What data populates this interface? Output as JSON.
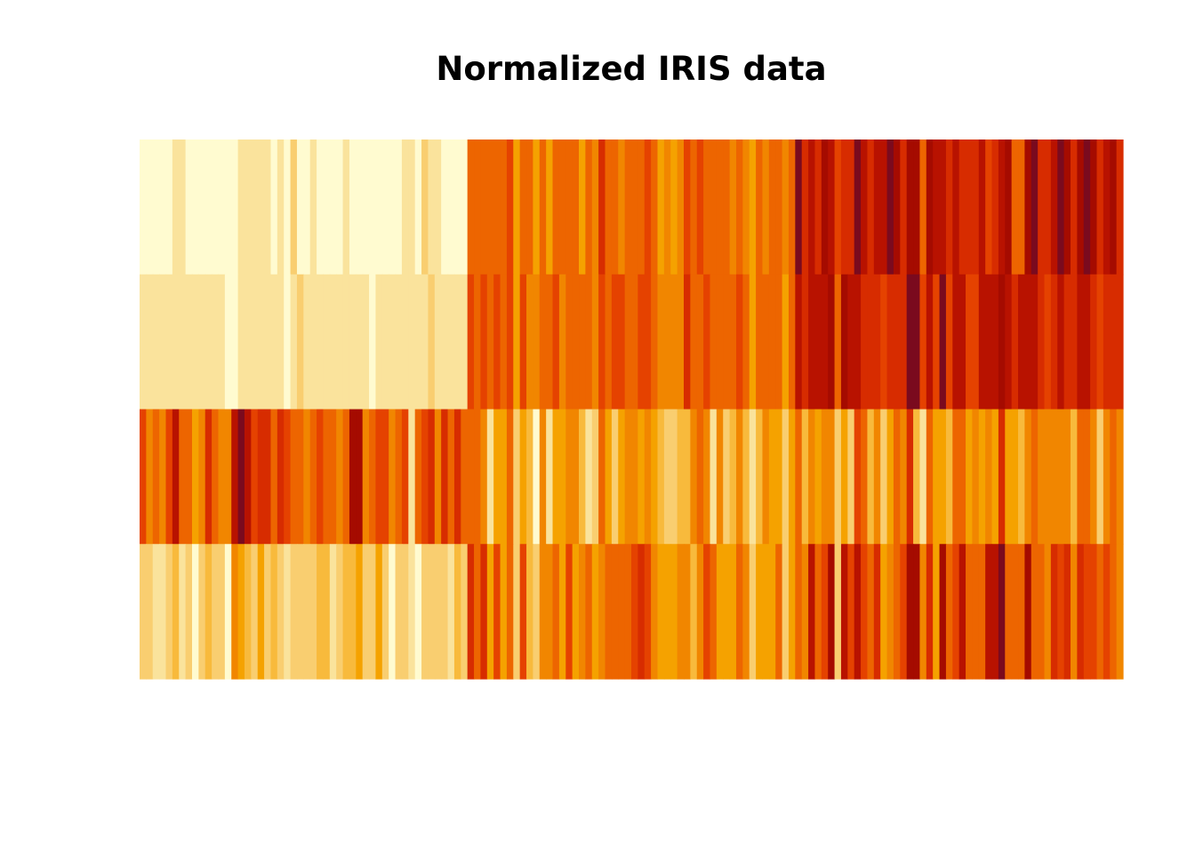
{
  "page": {
    "background": "#ffffff"
  },
  "chart_data": {
    "type": "heatmap",
    "title": "Normalized IRIS data",
    "xlabel": "",
    "ylabel": "",
    "axes_shown": false,
    "legend": "none",
    "grid": false,
    "n_columns": 150,
    "row_order_top_to_bottom": [
      3,
      2,
      1,
      0
    ],
    "value_range": [
      0,
      1
    ],
    "color_scale": {
      "name": "heat",
      "low_to_high": [
        "#fffbd0",
        "#fae39c",
        "#f9ce70",
        "#f8ba3c",
        "#f5a200",
        "#f18600",
        "#ed6500",
        "#e54200",
        "#d72c00",
        "#b81200",
        "#a50b00",
        "#7a0a1e"
      ]
    },
    "rows": [
      [
        0.22,
        0.17,
        0.11,
        0.08,
        0.19,
        0.31,
        0.08,
        0.19,
        0.03,
        0.17,
        0.31,
        0.14,
        0.14,
        0.0,
        0.42,
        0.39,
        0.31,
        0.22,
        0.39,
        0.22,
        0.31,
        0.22,
        0.08,
        0.22,
        0.14,
        0.19,
        0.19,
        0.25,
        0.25,
        0.11,
        0.14,
        0.31,
        0.25,
        0.33,
        0.17,
        0.19,
        0.33,
        0.17,
        0.03,
        0.22,
        0.19,
        0.06,
        0.03,
        0.19,
        0.22,
        0.14,
        0.22,
        0.08,
        0.28,
        0.19,
        0.75,
        0.58,
        0.72,
        0.33,
        0.61,
        0.39,
        0.56,
        0.17,
        0.64,
        0.25,
        0.19,
        0.44,
        0.47,
        0.5,
        0.36,
        0.67,
        0.36,
        0.42,
        0.53,
        0.36,
        0.44,
        0.5,
        0.56,
        0.5,
        0.58,
        0.64,
        0.69,
        0.67,
        0.47,
        0.39,
        0.33,
        0.33,
        0.42,
        0.47,
        0.31,
        0.47,
        0.67,
        0.56,
        0.36,
        0.33,
        0.33,
        0.5,
        0.42,
        0.19,
        0.36,
        0.39,
        0.39,
        0.53,
        0.22,
        0.39,
        0.56,
        0.42,
        0.78,
        0.56,
        0.61,
        0.92,
        0.17,
        0.83,
        0.67,
        0.81,
        0.61,
        0.58,
        0.69,
        0.39,
        0.42,
        0.58,
        0.61,
        0.94,
        0.94,
        0.47,
        0.72,
        0.36,
        0.94,
        0.56,
        0.67,
        0.81,
        0.53,
        0.5,
        0.58,
        0.81,
        0.86,
        1.0,
        0.58,
        0.56,
        0.5,
        0.94,
        0.56,
        0.58,
        0.47,
        0.72,
        0.67,
        0.72,
        0.42,
        0.69,
        0.67,
        0.67,
        0.56,
        0.61,
        0.53,
        0.44
      ],
      [
        0.63,
        0.42,
        0.5,
        0.46,
        0.67,
        0.79,
        0.58,
        0.58,
        0.38,
        0.46,
        0.71,
        0.58,
        0.42,
        0.42,
        0.83,
        1.0,
        0.79,
        0.63,
        0.75,
        0.75,
        0.58,
        0.71,
        0.67,
        0.54,
        0.58,
        0.42,
        0.58,
        0.63,
        0.58,
        0.5,
        0.46,
        0.58,
        0.88,
        0.92,
        0.46,
        0.5,
        0.63,
        0.67,
        0.42,
        0.58,
        0.63,
        0.13,
        0.5,
        0.63,
        0.75,
        0.42,
        0.75,
        0.5,
        0.71,
        0.54,
        0.5,
        0.5,
        0.46,
        0.13,
        0.33,
        0.33,
        0.54,
        0.17,
        0.38,
        0.29,
        0.0,
        0.42,
        0.08,
        0.38,
        0.38,
        0.46,
        0.42,
        0.29,
        0.08,
        0.21,
        0.5,
        0.33,
        0.21,
        0.33,
        0.42,
        0.46,
        0.33,
        0.42,
        0.38,
        0.25,
        0.17,
        0.17,
        0.29,
        0.29,
        0.42,
        0.58,
        0.46,
        0.13,
        0.42,
        0.21,
        0.25,
        0.42,
        0.25,
        0.13,
        0.29,
        0.42,
        0.38,
        0.38,
        0.21,
        0.33,
        0.54,
        0.29,
        0.42,
        0.38,
        0.42,
        0.42,
        0.21,
        0.38,
        0.21,
        0.67,
        0.5,
        0.29,
        0.42,
        0.21,
        0.33,
        0.5,
        0.42,
        0.75,
        0.25,
        0.08,
        0.5,
        0.33,
        0.33,
        0.29,
        0.54,
        0.5,
        0.33,
        0.42,
        0.33,
        0.42,
        0.33,
        0.75,
        0.33,
        0.33,
        0.25,
        0.42,
        0.58,
        0.46,
        0.42,
        0.46,
        0.46,
        0.46,
        0.29,
        0.5,
        0.54,
        0.42,
        0.21,
        0.42,
        0.58,
        0.42
      ],
      [
        0.07,
        0.07,
        0.05,
        0.08,
        0.07,
        0.12,
        0.07,
        0.08,
        0.07,
        0.08,
        0.08,
        0.1,
        0.07,
        0.02,
        0.03,
        0.08,
        0.05,
        0.07,
        0.12,
        0.08,
        0.12,
        0.08,
        0.0,
        0.12,
        0.15,
        0.1,
        0.1,
        0.08,
        0.07,
        0.1,
        0.1,
        0.08,
        0.08,
        0.07,
        0.08,
        0.03,
        0.05,
        0.07,
        0.05,
        0.08,
        0.05,
        0.05,
        0.05,
        0.1,
        0.15,
        0.07,
        0.1,
        0.07,
        0.08,
        0.07,
        0.63,
        0.59,
        0.66,
        0.51,
        0.61,
        0.59,
        0.63,
        0.39,
        0.61,
        0.49,
        0.42,
        0.54,
        0.51,
        0.63,
        0.44,
        0.58,
        0.59,
        0.53,
        0.59,
        0.49,
        0.64,
        0.51,
        0.66,
        0.63,
        0.56,
        0.58,
        0.64,
        0.68,
        0.59,
        0.42,
        0.47,
        0.46,
        0.49,
        0.69,
        0.59,
        0.59,
        0.63,
        0.58,
        0.53,
        0.51,
        0.58,
        0.61,
        0.51,
        0.39,
        0.54,
        0.54,
        0.54,
        0.56,
        0.34,
        0.53,
        0.85,
        0.69,
        0.83,
        0.78,
        0.81,
        0.95,
        0.59,
        0.9,
        0.81,
        0.86,
        0.69,
        0.73,
        0.76,
        0.68,
        0.69,
        0.73,
        0.76,
        0.97,
        1.0,
        0.68,
        0.8,
        0.66,
        0.97,
        0.66,
        0.8,
        0.85,
        0.64,
        0.66,
        0.78,
        0.81,
        0.86,
        0.9,
        0.78,
        0.69,
        0.78,
        0.86,
        0.78,
        0.76,
        0.64,
        0.75,
        0.78,
        0.69,
        0.69,
        0.83,
        0.8,
        0.71,
        0.68,
        0.71,
        0.73,
        0.69
      ],
      [
        0.04,
        0.04,
        0.04,
        0.04,
        0.04,
        0.13,
        0.08,
        0.04,
        0.04,
        0.0,
        0.04,
        0.04,
        0.0,
        0.0,
        0.04,
        0.13,
        0.13,
        0.08,
        0.08,
        0.08,
        0.04,
        0.13,
        0.04,
        0.17,
        0.04,
        0.04,
        0.13,
        0.04,
        0.04,
        0.04,
        0.04,
        0.13,
        0.0,
        0.04,
        0.04,
        0.04,
        0.04,
        0.0,
        0.04,
        0.04,
        0.08,
        0.08,
        0.04,
        0.21,
        0.13,
        0.08,
        0.04,
        0.04,
        0.04,
        0.04,
        0.54,
        0.58,
        0.58,
        0.5,
        0.58,
        0.5,
        0.63,
        0.38,
        0.5,
        0.54,
        0.38,
        0.58,
        0.38,
        0.54,
        0.5,
        0.54,
        0.58,
        0.38,
        0.58,
        0.42,
        0.71,
        0.5,
        0.58,
        0.46,
        0.5,
        0.54,
        0.54,
        0.67,
        0.58,
        0.38,
        0.42,
        0.38,
        0.46,
        0.63,
        0.58,
        0.63,
        0.58,
        0.5,
        0.5,
        0.5,
        0.46,
        0.54,
        0.46,
        0.38,
        0.5,
        0.46,
        0.5,
        0.5,
        0.42,
        0.5,
        1.0,
        0.75,
        0.83,
        0.71,
        0.88,
        0.83,
        0.67,
        0.71,
        0.71,
        1.0,
        0.79,
        0.75,
        0.83,
        0.79,
        0.96,
        0.92,
        0.71,
        0.88,
        0.92,
        0.58,
        0.92,
        0.79,
        0.79,
        0.71,
        0.83,
        0.71,
        0.71,
        0.71,
        0.83,
        0.63,
        0.75,
        0.79,
        0.88,
        0.58,
        0.54,
        0.92,
        0.96,
        0.71,
        0.71,
        0.83,
        0.96,
        0.92,
        0.75,
        0.92,
        1.0,
        0.92,
        0.75,
        0.79,
        0.92,
        0.71
      ]
    ]
  }
}
